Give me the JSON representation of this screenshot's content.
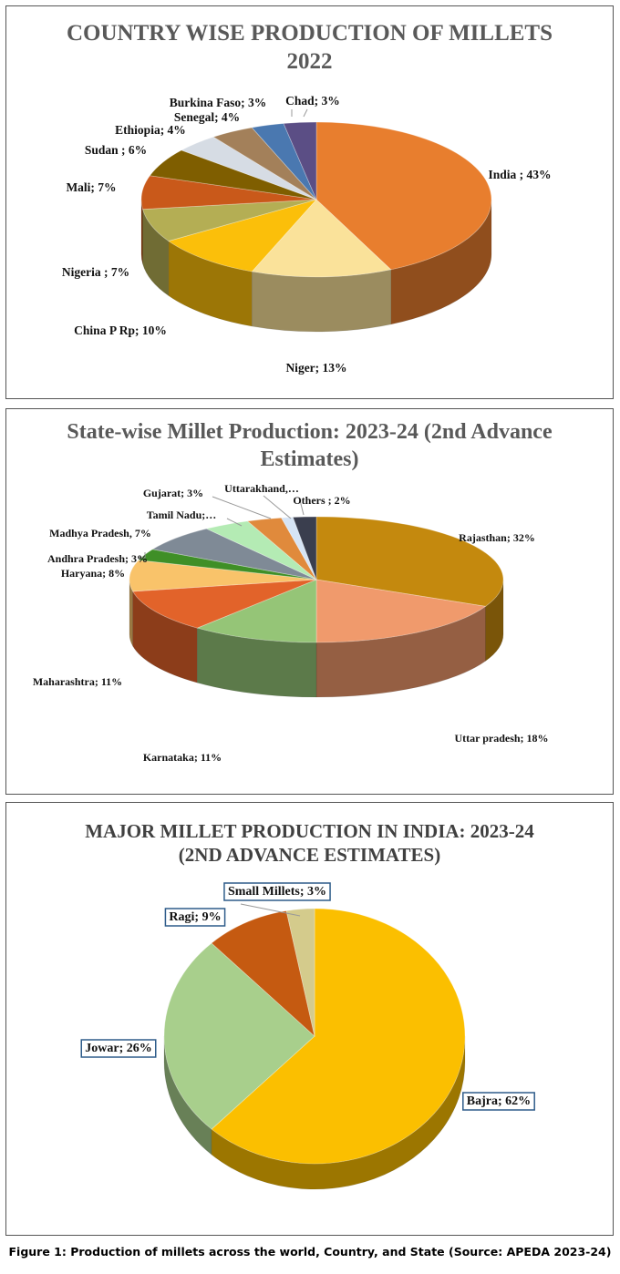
{
  "chart_data": [
    {
      "type": "pie",
      "title_line1": "COUNTRY WISE PRODUCTION OF MILLETS",
      "title_line2": "2022",
      "slices": [
        {
          "label": "India ; 43%",
          "value": 43,
          "color": "#E87E2E"
        },
        {
          "label": "Niger; 13%",
          "value": 13,
          "color": "#FAE29A"
        },
        {
          "label": "China P Rp; 10%",
          "value": 10,
          "color": "#FBBF0A"
        },
        {
          "label": "Nigeria ; 7%",
          "value": 7,
          "color": "#B4AE54"
        },
        {
          "label": "Mali; 7%",
          "value": 7,
          "color": "#C9591A"
        },
        {
          "label": "Sudan ; 6%",
          "value": 6,
          "color": "#7F5E00"
        },
        {
          "label": "Ethiopia; 4%",
          "value": 4,
          "color": "#D6DCE4"
        },
        {
          "label": "Senegal; 4%",
          "value": 4,
          "color": "#A3805A"
        },
        {
          "label": "Burkina Faso; 3%",
          "value": 3,
          "color": "#4A78B0"
        },
        {
          "label": "Chad; 3%",
          "value": 3,
          "color": "#5B4E85"
        }
      ]
    },
    {
      "type": "pie",
      "title_line1": "State-wise Millet Production: 2023-24 (2nd Advance",
      "title_line2": "Estimates)",
      "slices": [
        {
          "label": "Rajasthan; 32%",
          "value": 32,
          "color": "#C4890E"
        },
        {
          "label": "Uttar pradesh; 18%",
          "value": 18,
          "color": "#F09A6C"
        },
        {
          "label": "Karnataka; 11%",
          "value": 11,
          "color": "#95C577"
        },
        {
          "label": "Maharashtra; 11%",
          "value": 11,
          "color": "#E2632A"
        },
        {
          "label": "Haryana; 8%",
          "value": 8,
          "color": "#F9C36A"
        },
        {
          "label": "Andhra Pradesh; 3%",
          "value": 3,
          "color": "#3F8F27"
        },
        {
          "label": "Madhya Pradesh, 7%",
          "value": 7,
          "color": "#7F8A96"
        },
        {
          "label": "Tamil Nadu;…",
          "value": 4,
          "color": "#B4EBB4"
        },
        {
          "label": "Gujarat; 3%",
          "value": 3,
          "color": "#E08A3C"
        },
        {
          "label": "Uttarakhand,…",
          "value": 1,
          "color": "#D6E4F5"
        },
        {
          "label": "Others ; 2%",
          "value": 2,
          "color": "#3A3E4E"
        }
      ]
    },
    {
      "type": "pie",
      "title_line1": "MAJOR MILLET PRODUCTION IN INDIA: 2023-24",
      "title_line2": "(2ND ADVANCE ESTIMATES)",
      "slices": [
        {
          "label": "Bajra; 62%",
          "value": 62,
          "color": "#FBBF00"
        },
        {
          "label": "Jowar; 26%",
          "value": 26,
          "color": "#A8CF8C"
        },
        {
          "label": "Ragi; 9%",
          "value": 9,
          "color": "#C55A11"
        },
        {
          "label": "Small Millets; 3%",
          "value": 3,
          "color": "#D4CB8C"
        }
      ]
    }
  ],
  "caption": "Figure 1: Production of millets across the world, Country, and State (Source: APEDA 2023-24)"
}
